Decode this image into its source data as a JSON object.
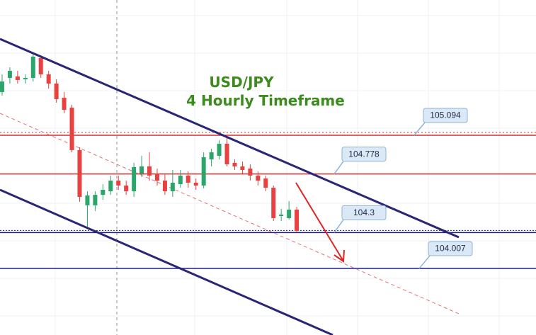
{
  "chart_data": {
    "type": "candlestick",
    "title": "USD/JPY",
    "subtitle": "4 Hourly Timeframe",
    "ylim": [
      103.464,
      106.198
    ],
    "up_color": "#2ba66b",
    "down_color": "#e8413f",
    "categories": [
      null,
      null,
      null,
      null,
      null,
      null,
      null,
      null,
      null,
      null,
      null,
      null,
      null,
      null,
      null,
      null,
      null,
      null,
      null,
      null,
      null,
      null,
      null,
      null,
      null,
      null,
      null,
      null,
      null,
      null,
      null,
      null,
      null,
      null,
      null,
      null,
      null,
      null,
      null
    ],
    "open": [
      105.447,
      105.562,
      105.574,
      105.551,
      105.562,
      105.724,
      105.591,
      105.516,
      105.4,
      105.319,
      104.973,
      104.522,
      104.522,
      104.608,
      104.637,
      104.724,
      104.684,
      104.637,
      104.782,
      104.84,
      104.782,
      104.724,
      104.637,
      104.695,
      104.765,
      104.707,
      104.684,
      104.897,
      104.926,
      105.025,
      104.869,
      104.84,
      104.822,
      104.765,
      104.741,
      104.666,
      104.435,
      104.418,
      104.487
    ],
    "high": [
      105.591,
      105.649,
      105.62,
      105.591,
      105.765,
      105.747,
      105.62,
      105.551,
      105.447,
      105.343,
      104.996,
      104.637,
      104.637,
      104.695,
      104.765,
      104.765,
      104.724,
      104.869,
      104.926,
      104.955,
      104.822,
      104.782,
      104.811,
      104.811,
      104.799,
      104.741,
      104.955,
      104.984,
      105.054,
      105.071,
      104.897,
      104.88,
      104.857,
      104.799,
      104.765,
      104.684,
      104.493,
      104.556,
      104.51
    ],
    "low": [
      105.418,
      105.516,
      105.516,
      105.516,
      105.533,
      105.562,
      105.475,
      105.36,
      105.273,
      104.955,
      104.551,
      104.348,
      104.476,
      104.568,
      104.608,
      104.649,
      104.608,
      104.591,
      104.753,
      104.724,
      104.684,
      104.608,
      104.591,
      104.666,
      104.666,
      104.649,
      104.661,
      104.84,
      104.897,
      104.84,
      104.811,
      104.782,
      104.724,
      104.684,
      104.637,
      104.395,
      104.395,
      104.406,
      104.302
    ],
    "close": [
      105.533,
      105.62,
      105.545,
      105.562,
      105.736,
      105.591,
      105.516,
      105.389,
      105.302,
      104.973,
      104.591,
      104.603,
      104.608,
      104.649,
      104.724,
      104.684,
      104.637,
      104.834,
      104.84,
      104.765,
      104.724,
      104.637,
      104.707,
      104.765,
      104.707,
      104.684,
      104.915,
      104.955,
      105.025,
      104.857,
      104.84,
      104.811,
      104.765,
      104.724,
      104.666,
      104.418,
      104.447,
      104.487,
      104.314
    ],
    "levels": [
      {
        "value": 105.094,
        "color": "#d92b2b"
      },
      {
        "value": 104.778,
        "color": "#d92b2b"
      },
      {
        "value": 104.3,
        "color": "#1a1a9c"
      },
      {
        "value": 104.007,
        "color": "#1a1a9c"
      }
    ]
  }
}
